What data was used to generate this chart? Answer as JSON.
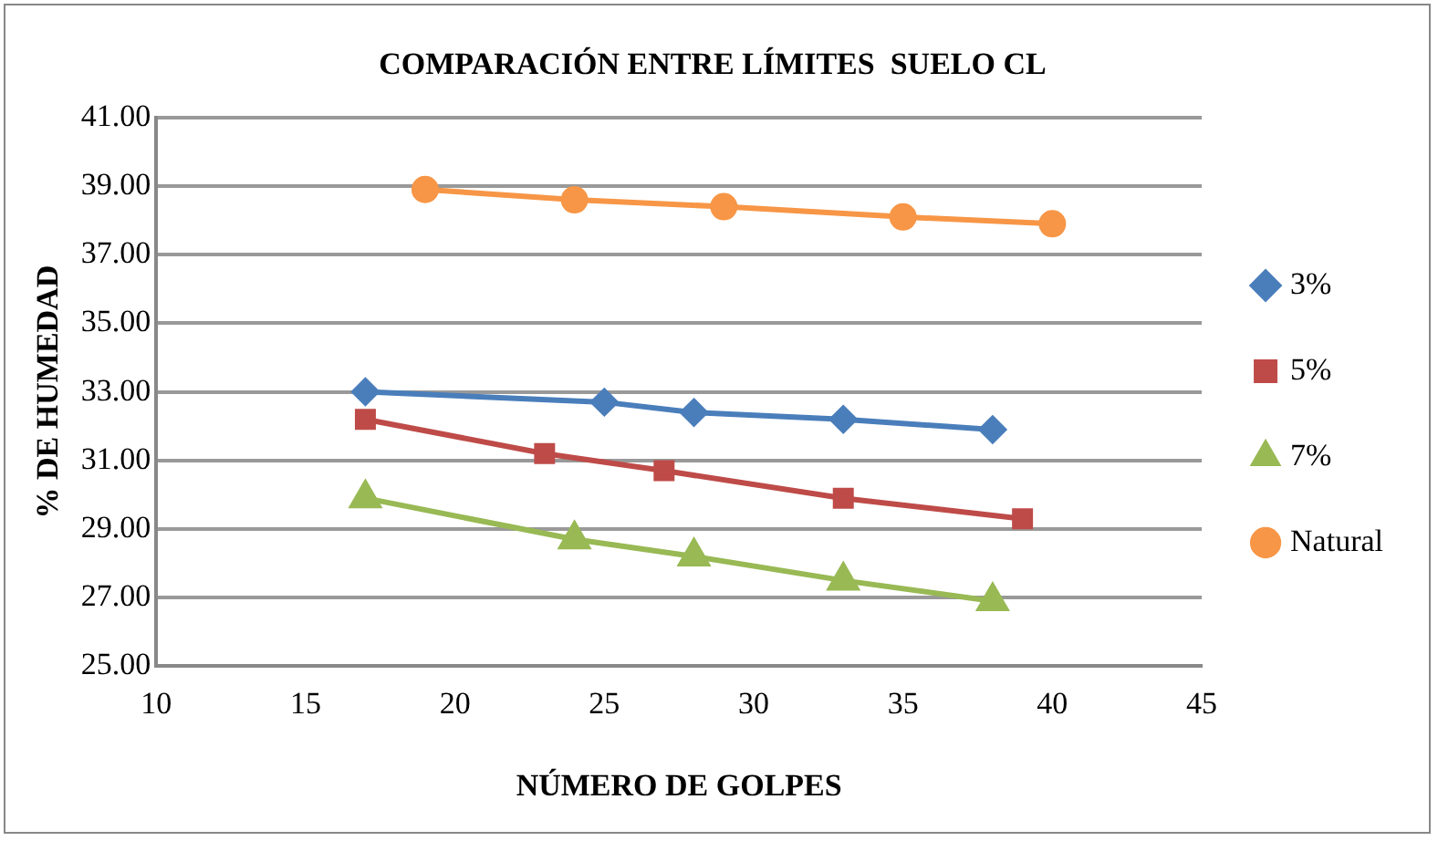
{
  "chart_data": {
    "type": "line",
    "title": "COMPARACIÓN ENTRE LÍMITES  SUELO CL",
    "xlabel": "NÚMERO DE GOLPES",
    "ylabel": "% DE HUMEDAD",
    "xlim": [
      10,
      45
    ],
    "xticks": [
      10,
      15,
      20,
      25,
      30,
      35,
      40,
      45
    ],
    "ylim": [
      25,
      41
    ],
    "yticks": [
      {
        "value": 25,
        "label": "25.00"
      },
      {
        "value": 27,
        "label": "27.00"
      },
      {
        "value": 29,
        "label": "29.00"
      },
      {
        "value": 31,
        "label": "31.00"
      },
      {
        "value": 33,
        "label": "33.00"
      },
      {
        "value": 35,
        "label": "35.00"
      },
      {
        "value": 37,
        "label": "37.00"
      },
      {
        "value": 39,
        "label": "39.00"
      },
      {
        "value": 41,
        "label": "41.00"
      }
    ],
    "grid": "y",
    "legend": "right",
    "series": [
      {
        "name": "3%",
        "color": "#4a7ebb",
        "marker": "diamond",
        "x": [
          17,
          25,
          28,
          33,
          38
        ],
        "values": [
          33.0,
          32.7,
          32.4,
          32.2,
          31.9
        ]
      },
      {
        "name": "5%",
        "color": "#be4b48",
        "marker": "square",
        "x": [
          17,
          23,
          27,
          33,
          39
        ],
        "values": [
          32.2,
          31.2,
          30.7,
          29.9,
          29.3
        ]
      },
      {
        "name": "7%",
        "color": "#98b954",
        "marker": "triangle",
        "x": [
          17,
          24,
          28,
          33,
          38
        ],
        "values": [
          29.9,
          28.7,
          28.2,
          27.5,
          26.9
        ]
      },
      {
        "name": "Natural",
        "color": "#f79646",
        "marker": "circle",
        "x": [
          19,
          24,
          29,
          35,
          40
        ],
        "values": [
          38.9,
          38.6,
          38.4,
          38.1,
          37.9
        ]
      }
    ]
  }
}
